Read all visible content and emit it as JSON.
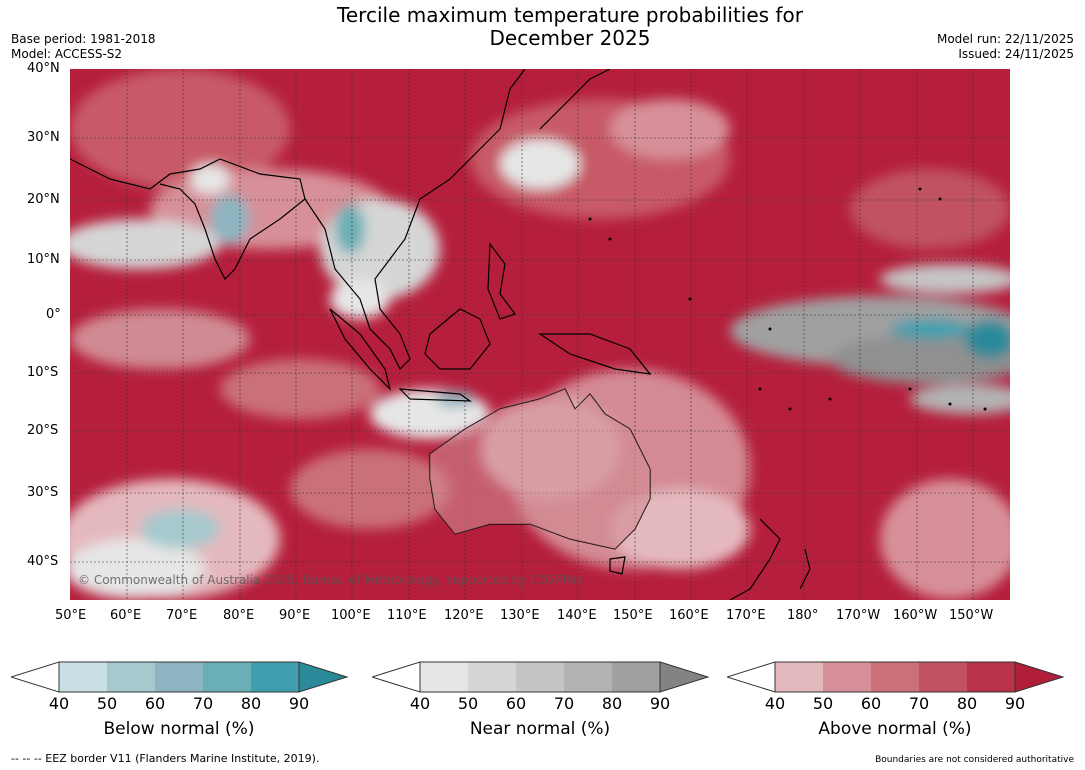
{
  "title_line1": "Tercile maximum temperature probabilities for",
  "title_line2": "December 2025",
  "base_period": "Base period: 1981-2018",
  "model": "Model: ACCESS-S2",
  "model_run": "Model run: 22/11/2025",
  "issued": "Issued: 24/11/2025",
  "lat_labels": [
    "40°N",
    "30°N",
    "20°N",
    "10°N",
    "0°",
    "10°S",
    "20°S",
    "30°S",
    "40°S"
  ],
  "lon_labels": [
    "50°E",
    "60°E",
    "70°E",
    "80°E",
    "90°E",
    "100°E",
    "110°E",
    "120°E",
    "130°E",
    "140°E",
    "150°E",
    "160°E",
    "170°E",
    "180°",
    "170°W",
    "160°W",
    "150°W"
  ],
  "copyright": "© Commonwealth of Australia 2025, Bureau of Meteorology, supported by COSPPac",
  "legends": {
    "below": {
      "label": "Below normal (%)",
      "ticks": [
        "40",
        "50",
        "60",
        "70",
        "80",
        "90"
      ],
      "colors": [
        "#c9e1e6",
        "#a6c9cd",
        "#8db4c0",
        "#6aafb6",
        "#3f9faf",
        "#2b8a9a"
      ]
    },
    "near": {
      "label": "Near normal (%)",
      "ticks": [
        "40",
        "50",
        "60",
        "70",
        "80",
        "90"
      ],
      "colors": [
        "#e6e6e6",
        "#d6d6d6",
        "#c5c5c5",
        "#b3b3b3",
        "#a0a0a0",
        "#838383"
      ]
    },
    "above": {
      "label": "Above normal (%)",
      "ticks": [
        "40",
        "50",
        "60",
        "70",
        "80",
        "90"
      ],
      "colors": [
        "#e4b9be",
        "#d79099",
        "#ca7078",
        "#c0535f",
        "#b93247",
        "#b01e3a"
      ]
    }
  },
  "eez_note": "-- -- -- EEZ border V11 (Flanders Marine Institute, 2019).",
  "boundaries_note": "Boundaries are not considered authoritative"
}
